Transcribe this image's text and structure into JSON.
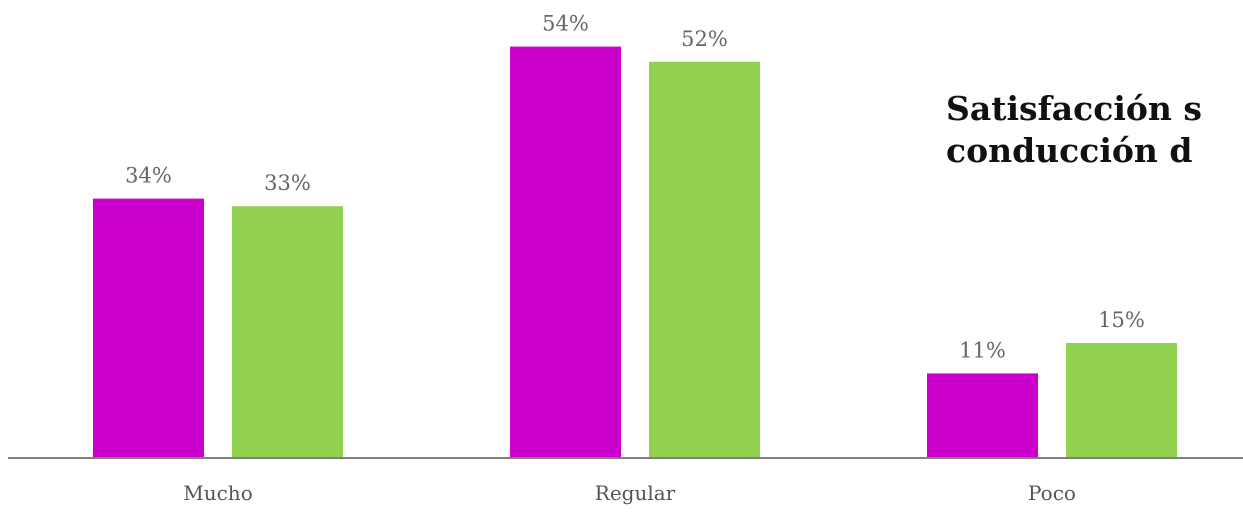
{
  "chart_data": {
    "type": "bar",
    "title_lines": [
      "Satisfacción s",
      "conducción d"
    ],
    "categories": [
      "Mucho",
      "Regular",
      "Poco"
    ],
    "series": [
      {
        "values": [
          34,
          54,
          11
        ],
        "labels": [
          "34%",
          "54%",
          "11%"
        ],
        "color": "#cc00cc"
      },
      {
        "values": [
          33,
          52,
          15
        ],
        "labels": [
          "33%",
          "52%",
          "15%"
        ],
        "color": "#92d050"
      }
    ],
    "ylim": [
      0,
      60
    ],
    "axis_color": "#808080",
    "grid": false,
    "legend": "none"
  }
}
